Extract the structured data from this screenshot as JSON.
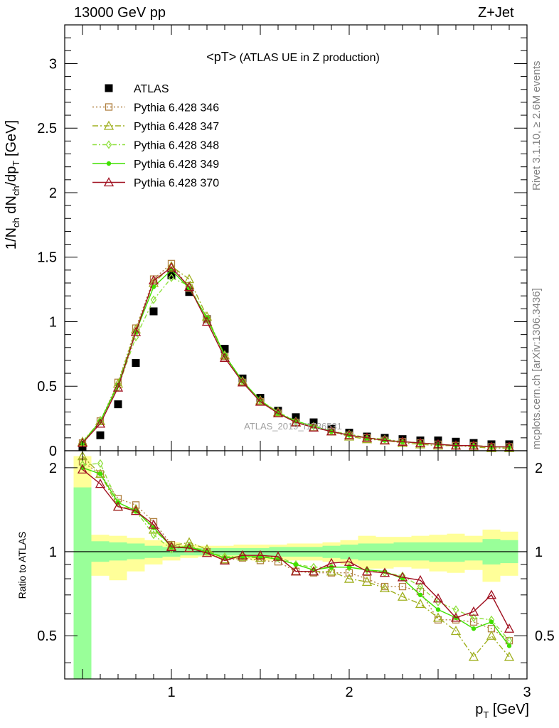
{
  "header": {
    "energy": "13000 GeV pp",
    "process": "Z+Jet",
    "title": "<pT>",
    "title_suffix": " (ATLAS UE in Z production)",
    "rivet": "Rivet 3.1.10, ≥ 2.6M events",
    "mcplots": "mcplots.cern.ch [arXiv:1306.3436]",
    "watermark": "ATLAS_2019_I1736531"
  },
  "chart_data": [
    {
      "type": "scatter",
      "panel": "main",
      "ylabel": "1/N_ch dN_ch/dp_T [GeV]",
      "xlim": [
        0.4,
        3.0
      ],
      "ylim": [
        0,
        3.3
      ],
      "yticks": [
        "0",
        "0.5",
        "1",
        "1.5",
        "2",
        "2.5",
        "3"
      ],
      "grid": false,
      "legend_position": "top-left",
      "x": [
        0.5,
        0.6,
        0.7,
        0.8,
        0.9,
        1.0,
        1.1,
        1.2,
        1.3,
        1.4,
        1.5,
        1.6,
        1.7,
        1.8,
        1.9,
        2.0,
        2.1,
        2.2,
        2.3,
        2.4,
        2.5,
        2.6,
        2.7,
        2.8,
        2.9
      ],
      "series": [
        {
          "name": "ATLAS",
          "color": "#000000",
          "marker": "filled-square",
          "values": [
            0.03,
            0.12,
            0.36,
            0.68,
            1.08,
            1.36,
            1.23,
            1.02,
            0.79,
            0.56,
            0.41,
            0.31,
            0.26,
            0.22,
            0.17,
            0.14,
            0.11,
            0.1,
            0.09,
            0.08,
            0.08,
            0.07,
            0.06,
            0.05,
            0.05
          ]
        },
        {
          "name": "Pythia 6.428 346",
          "color": "#b08040",
          "marker": "open-square",
          "dash": "2,3",
          "values": [
            0.06,
            0.23,
            0.53,
            0.95,
            1.33,
            1.45,
            1.26,
            1.02,
            0.73,
            0.53,
            0.38,
            0.29,
            0.22,
            0.18,
            0.15,
            0.12,
            0.1,
            0.08,
            0.07,
            0.06,
            0.05,
            0.04,
            0.04,
            0.03,
            0.03
          ]
        },
        {
          "name": "Pythia 6.428 347",
          "color": "#a0b020",
          "marker": "open-triangle",
          "dash": "8,3,2,3",
          "values": [
            0.07,
            0.23,
            0.52,
            0.94,
            1.3,
            1.43,
            1.33,
            1.04,
            0.74,
            0.54,
            0.39,
            0.3,
            0.22,
            0.18,
            0.15,
            0.11,
            0.09,
            0.08,
            0.06,
            0.05,
            0.04,
            0.04,
            0.03,
            0.02,
            0.02
          ]
        },
        {
          "name": "Pythia 6.428 348",
          "color": "#90e040",
          "marker": "open-diamond",
          "dash": "6,3,2,3",
          "values": [
            0.07,
            0.23,
            0.49,
            0.88,
            1.17,
            1.34,
            1.28,
            1.02,
            0.74,
            0.54,
            0.39,
            0.3,
            0.23,
            0.19,
            0.15,
            0.13,
            0.1,
            0.09,
            0.07,
            0.06,
            0.05,
            0.04,
            0.04,
            0.03,
            0.03
          ]
        },
        {
          "name": "Pythia 6.428 349",
          "color": "#40e000",
          "marker": "filled-circle",
          "dash": "",
          "values": [
            0.06,
            0.23,
            0.51,
            0.92,
            1.27,
            1.4,
            1.26,
            1.03,
            0.74,
            0.54,
            0.39,
            0.29,
            0.23,
            0.19,
            0.15,
            0.12,
            0.1,
            0.08,
            0.07,
            0.06,
            0.05,
            0.04,
            0.04,
            0.03,
            0.03
          ]
        },
        {
          "name": "Pythia 6.428 370",
          "color": "#a01020",
          "marker": "open-triangle",
          "dash": "",
          "values": [
            0.06,
            0.21,
            0.49,
            0.92,
            1.32,
            1.42,
            1.27,
            1.0,
            0.72,
            0.53,
            0.38,
            0.29,
            0.22,
            0.18,
            0.15,
            0.12,
            0.1,
            0.08,
            0.07,
            0.06,
            0.05,
            0.04,
            0.04,
            0.03,
            0.03
          ]
        }
      ]
    },
    {
      "type": "line",
      "panel": "ratio",
      "ylabel": "Ratio to ATLAS",
      "xlabel": "p_T [GeV]",
      "xlim": [
        0.4,
        3.0
      ],
      "ylim": [
        0.35,
        2.3
      ],
      "yticks": [
        "0.5",
        "1",
        "2"
      ],
      "xticks": [
        "1",
        "2",
        "3"
      ],
      "reference": 1.0,
      "x": [
        0.5,
        0.6,
        0.7,
        0.8,
        0.9,
        1.0,
        1.1,
        1.2,
        1.3,
        1.4,
        1.5,
        1.6,
        1.7,
        1.8,
        1.9,
        2.0,
        2.1,
        2.2,
        2.3,
        2.4,
        2.5,
        2.6,
        2.7,
        2.8,
        2.9
      ],
      "bands": {
        "edges": [
          0.45,
          0.55,
          0.65,
          0.75,
          0.85,
          0.95,
          1.05,
          1.15,
          1.25,
          1.35,
          1.45,
          1.55,
          1.65,
          1.75,
          1.85,
          1.95,
          2.05,
          2.15,
          2.25,
          2.35,
          2.45,
          2.55,
          2.65,
          2.75,
          2.85,
          2.95
        ],
        "outer_color": "#ffff99",
        "inner_color": "#99ff99",
        "outer_hi": [
          2.2,
          1.15,
          1.14,
          1.12,
          1.1,
          1.08,
          1.06,
          1.05,
          1.05,
          1.06,
          1.06,
          1.06,
          1.07,
          1.07,
          1.08,
          1.1,
          1.14,
          1.13,
          1.13,
          1.14,
          1.15,
          1.16,
          1.14,
          1.2,
          1.18
        ],
        "outer_lo": [
          0.3,
          0.82,
          0.79,
          0.85,
          0.9,
          0.93,
          0.95,
          0.96,
          0.95,
          0.94,
          0.93,
          0.93,
          0.93,
          0.93,
          0.92,
          0.9,
          0.87,
          0.87,
          0.88,
          0.87,
          0.85,
          0.84,
          0.86,
          0.78,
          0.82
        ],
        "inner_hi": [
          1.7,
          1.09,
          1.08,
          1.07,
          1.05,
          1.04,
          1.03,
          1.03,
          1.03,
          1.03,
          1.03,
          1.04,
          1.04,
          1.04,
          1.05,
          1.06,
          1.07,
          1.07,
          1.08,
          1.08,
          1.08,
          1.08,
          1.08,
          1.11,
          1.1
        ],
        "inner_lo": [
          0.3,
          0.92,
          0.93,
          0.94,
          0.95,
          0.96,
          0.97,
          0.97,
          0.97,
          0.97,
          0.96,
          0.96,
          0.96,
          0.96,
          0.95,
          0.94,
          0.93,
          0.93,
          0.93,
          0.93,
          0.92,
          0.92,
          0.93,
          0.9,
          0.91
        ]
      },
      "series": [
        {
          "name": "Pythia 6.428 346",
          "color": "#b08040",
          "marker": "open-square",
          "dash": "2,3",
          "values": [
            2.1,
            1.9,
            1.55,
            1.47,
            1.28,
            1.06,
            1.03,
            1.0,
            0.93,
            0.95,
            0.93,
            0.92,
            0.85,
            0.84,
            0.84,
            0.84,
            0.8,
            0.75,
            0.75,
            0.72,
            0.57,
            0.57,
            0.56,
            0.53,
            0.48
          ]
        },
        {
          "name": "Pythia 6.428 347",
          "color": "#a0b020",
          "marker": "open-triangle",
          "dash": "8,3,2,3",
          "values": [
            2.2,
            1.9,
            1.45,
            1.42,
            1.2,
            1.05,
            1.08,
            1.02,
            0.94,
            0.96,
            0.95,
            0.96,
            0.85,
            0.85,
            0.85,
            0.8,
            0.78,
            0.74,
            0.69,
            0.65,
            0.58,
            0.52,
            0.42,
            0.5,
            0.42
          ]
        },
        {
          "name": "Pythia 6.428 348",
          "color": "#90e040",
          "marker": "open-diamond",
          "dash": "6,3,2,3",
          "values": [
            2.05,
            2.07,
            1.5,
            1.4,
            1.15,
            1.02,
            1.05,
            1.0,
            0.96,
            0.96,
            0.96,
            0.96,
            0.9,
            0.88,
            0.88,
            0.88,
            0.86,
            0.84,
            0.82,
            0.75,
            0.66,
            0.62,
            0.58,
            0.57,
            0.48
          ]
        },
        {
          "name": "Pythia 6.428 349",
          "color": "#40e000",
          "marker": "filled-circle",
          "dash": "",
          "values": [
            2.0,
            1.9,
            1.5,
            1.4,
            1.22,
            1.04,
            1.04,
            1.0,
            0.95,
            0.96,
            0.96,
            0.94,
            0.9,
            0.86,
            0.88,
            0.88,
            0.86,
            0.85,
            0.8,
            0.7,
            0.62,
            0.58,
            0.53,
            0.56,
            0.46
          ]
        },
        {
          "name": "Pythia 6.428 370",
          "color": "#a01020",
          "marker": "open-triangle",
          "dash": "",
          "values": [
            1.97,
            1.75,
            1.45,
            1.4,
            1.25,
            1.04,
            1.03,
            0.99,
            0.93,
            0.97,
            0.97,
            0.96,
            0.85,
            0.85,
            0.91,
            0.92,
            0.85,
            0.84,
            0.81,
            0.79,
            0.68,
            0.58,
            0.61,
            0.7,
            0.53
          ]
        }
      ]
    }
  ]
}
